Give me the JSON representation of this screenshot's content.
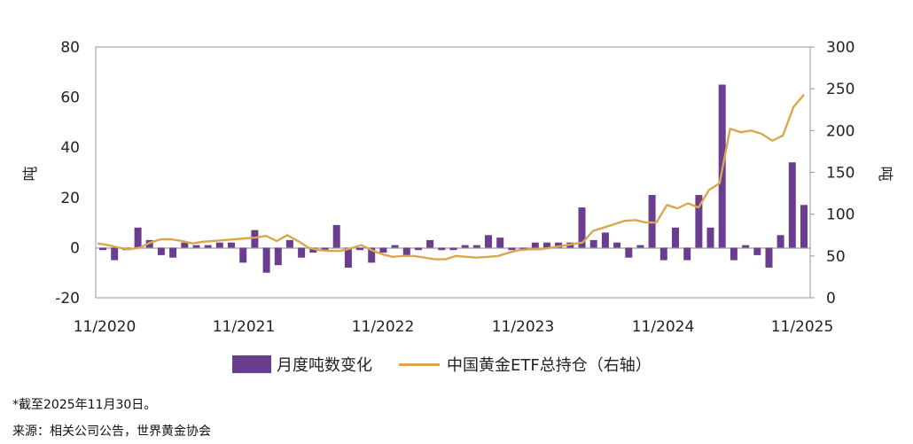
{
  "chart_data": {
    "type": "bar+line",
    "title": "",
    "x_tick_labels": [
      "11/2020",
      "11/2021",
      "11/2022",
      "11/2023",
      "11/2024",
      "11/2025"
    ],
    "y_left": {
      "label": "吨",
      "ticks": [
        "80",
        "60",
        "40",
        "20",
        "0",
        "-20"
      ],
      "ylim": [
        -20,
        80
      ]
    },
    "y_right": {
      "label": "吨",
      "ticks": [
        "300",
        "250",
        "200",
        "150",
        "100",
        "50",
        "0"
      ],
      "ylim": [
        0,
        300
      ]
    },
    "series": [
      {
        "name": "月度吨数变化",
        "type": "bar",
        "axis": "left",
        "color": "#6a3d8f",
        "values": [
          -1,
          -5,
          -1,
          8,
          3,
          -3,
          -4,
          2,
          1,
          1,
          2,
          2,
          -6,
          7,
          -10,
          -7,
          3,
          -4,
          -2,
          -1,
          9,
          -8,
          -1,
          -6,
          -2,
          1,
          -3,
          -1,
          3,
          -1,
          -1,
          1,
          1,
          5,
          4,
          -1,
          -1,
          2,
          2,
          2,
          2,
          16,
          3,
          6,
          2,
          -4,
          1,
          21,
          -5,
          8,
          -5,
          21,
          8,
          65,
          -5,
          1,
          -3,
          -8,
          5,
          34,
          17
        ]
      },
      {
        "name": "中国黄金ETF总持仓（右轴）",
        "type": "line",
        "axis": "right",
        "color": "#d9a84e",
        "values": [
          65,
          63,
          60,
          58,
          60,
          66,
          70,
          70,
          68,
          65,
          67,
          68,
          69,
          70,
          71,
          72,
          74,
          68,
          75,
          68,
          60,
          57,
          56,
          56,
          59,
          63,
          57,
          52,
          49,
          50,
          50,
          48,
          46,
          46,
          50,
          49,
          48,
          49,
          50,
          54,
          57,
          58,
          58,
          60,
          62,
          64,
          66,
          80,
          84,
          88,
          92,
          93,
          90,
          90,
          111,
          107,
          113,
          108,
          129,
          137,
          202,
          198,
          200,
          196,
          188,
          194,
          228,
          243
        ]
      }
    ],
    "grid": false,
    "legend_position": "bottom"
  },
  "legend": {
    "bar_label": "月度吨数变化",
    "line_label": "中国黄金ETF总持仓（右轴）"
  },
  "notes": {
    "footnote": "*截至2025年11月30日。",
    "source": "来源：相关公司公告，世界黄金协会"
  }
}
